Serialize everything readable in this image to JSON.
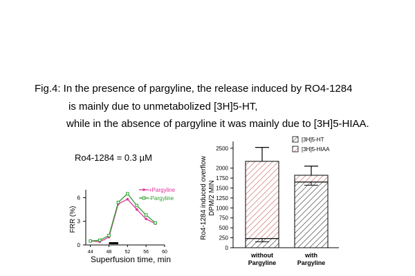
{
  "caption": {
    "line1": "Fig.4: In the presence of pargyline, the release induced by RO4-1284",
    "line2": "is mainly due to unmetabolized [3H]5-HT,",
    "line3": "while in the absence of pargyline it was mainly due to [3H]5-HIAA."
  },
  "colors": {
    "plus_pargyline": "#e0309a",
    "minus_pargyline": "#2aa02a",
    "hatch": "#333333",
    "hiaa_hatch": "#c0504d"
  },
  "chart_data": [
    {
      "type": "line",
      "annotation": "Ro4-1284 = 0.3 µM",
      "xlabel": "Superfusion time, min",
      "ylabel": "FRR (%)",
      "x_ticks": [
        "44",
        "48",
        "52",
        "56",
        "60"
      ],
      "y_ticks": [
        "0",
        "3",
        "6"
      ],
      "xlim": [
        43,
        60
      ],
      "ylim": [
        0,
        7
      ],
      "x": [
        44,
        46,
        48,
        50,
        52,
        54,
        56,
        58
      ],
      "series": [
        {
          "name": "+Pargyline",
          "values": [
            0.5,
            0.4,
            1.0,
            5.2,
            5.8,
            4.5,
            3.3,
            2.7
          ]
        },
        {
          "name": "-Pargyline",
          "values": [
            0.5,
            0.6,
            1.2,
            5.4,
            6.5,
            5.0,
            3.8,
            2.8
          ]
        }
      ],
      "stimulus_bar": {
        "x_start": 48,
        "x_end": 50
      },
      "legend": "top-right"
    },
    {
      "type": "bar",
      "stacked": true,
      "ylabel": "Ro4-1284 induced overflow DPM/2 MIN",
      "y_ticks": [
        "0",
        "250",
        "500",
        "750",
        "1000",
        "1250",
        "1500",
        "1750",
        "2000",
        "2500"
      ],
      "ylim": [
        0,
        2600
      ],
      "categories": [
        {
          "line1": "without",
          "line2": "Pargyline"
        },
        {
          "line1": "with",
          "line2": "Pargyline"
        }
      ],
      "series": [
        {
          "name": "[3H]5-HT",
          "values": [
            230,
            1650
          ]
        },
        {
          "name": "[3H]5-HIAA",
          "values": [
            1940,
            170
          ]
        }
      ],
      "totals": [
        2170,
        1820
      ],
      "error_bars": [
        350,
        230
      ],
      "inner_error_bars": [
        80,
        80
      ],
      "legend": "top"
    }
  ]
}
